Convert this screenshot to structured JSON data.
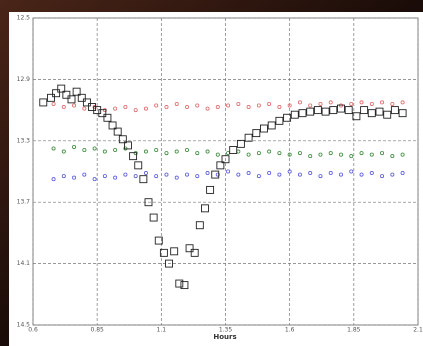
{
  "chart_data": {
    "type": "scatter",
    "xlabel": "Hours",
    "xlim": [
      0.6,
      2.1
    ],
    "xticks": [
      0.6,
      0.85,
      1.1,
      1.35,
      1.6,
      1.85,
      2.1
    ],
    "ylim": [
      12.5,
      14.5
    ],
    "yticks": [
      12.5,
      12.9,
      13.3,
      13.7,
      14.1,
      14.5
    ],
    "y_inverted": true,
    "grid": true,
    "series": [
      {
        "color": "#e06a6a",
        "marker": "circle",
        "x": [
          0.68,
          0.72,
          0.76,
          0.8,
          0.84,
          0.88,
          0.92,
          0.96,
          1.0,
          1.04,
          1.08,
          1.12,
          1.16,
          1.2,
          1.24,
          1.28,
          1.32,
          1.36,
          1.4,
          1.44,
          1.48,
          1.52,
          1.56,
          1.6,
          1.64,
          1.68,
          1.72,
          1.76,
          1.8,
          1.84,
          1.88,
          1.92,
          1.96,
          2.0,
          2.04
        ],
        "values": [
          13.06,
          13.08,
          13.07,
          13.09,
          13.08,
          13.1,
          13.09,
          13.08,
          13.1,
          13.09,
          13.07,
          13.08,
          13.06,
          13.08,
          13.07,
          13.09,
          13.08,
          13.07,
          13.06,
          13.08,
          13.07,
          13.06,
          13.08,
          13.07,
          13.05,
          13.07,
          13.06,
          13.05,
          13.07,
          13.06,
          13.05,
          13.06,
          13.05,
          13.06,
          13.05
        ]
      },
      {
        "color": "#3c8c3c",
        "marker": "circle",
        "x": [
          0.68,
          0.72,
          0.76,
          0.8,
          0.84,
          0.88,
          0.92,
          0.96,
          1.0,
          1.04,
          1.08,
          1.12,
          1.16,
          1.2,
          1.24,
          1.28,
          1.32,
          1.36,
          1.4,
          1.44,
          1.48,
          1.52,
          1.56,
          1.6,
          1.64,
          1.68,
          1.72,
          1.76,
          1.8,
          1.84,
          1.88,
          1.92,
          1.96,
          2.0,
          2.04
        ],
        "values": [
          13.35,
          13.37,
          13.34,
          13.36,
          13.35,
          13.37,
          13.36,
          13.35,
          13.38,
          13.37,
          13.36,
          13.38,
          13.37,
          13.36,
          13.38,
          13.37,
          13.39,
          13.38,
          13.37,
          13.39,
          13.38,
          13.37,
          13.38,
          13.39,
          13.38,
          13.4,
          13.39,
          13.38,
          13.39,
          13.4,
          13.38,
          13.39,
          13.38,
          13.4,
          13.39
        ]
      },
      {
        "color": "#5a5ae0",
        "marker": "circle",
        "x": [
          0.68,
          0.72,
          0.76,
          0.8,
          0.84,
          0.88,
          0.92,
          0.96,
          1.0,
          1.04,
          1.08,
          1.12,
          1.16,
          1.2,
          1.24,
          1.28,
          1.32,
          1.36,
          1.4,
          1.44,
          1.48,
          1.52,
          1.56,
          1.6,
          1.64,
          1.68,
          1.72,
          1.76,
          1.8,
          1.84,
          1.88,
          1.92,
          1.96,
          2.0,
          2.04
        ],
        "values": [
          13.55,
          13.53,
          13.54,
          13.52,
          13.55,
          13.53,
          13.54,
          13.52,
          13.53,
          13.51,
          13.53,
          13.52,
          13.54,
          13.52,
          13.53,
          13.51,
          13.52,
          13.5,
          13.52,
          13.51,
          13.53,
          13.51,
          13.52,
          13.5,
          13.52,
          13.51,
          13.53,
          13.51,
          13.52,
          13.5,
          13.52,
          13.51,
          13.53,
          13.52,
          13.51
        ]
      },
      {
        "color": "#222222",
        "marker": "square",
        "x": [
          0.64,
          0.67,
          0.69,
          0.71,
          0.73,
          0.75,
          0.77,
          0.79,
          0.81,
          0.83,
          0.85,
          0.87,
          0.89,
          0.91,
          0.93,
          0.95,
          0.97,
          0.99,
          1.01,
          1.03,
          1.05,
          1.07,
          1.09,
          1.11,
          1.13,
          1.15,
          1.17,
          1.19,
          1.21,
          1.23,
          1.25,
          1.27,
          1.29,
          1.31,
          1.33,
          1.35,
          1.38,
          1.41,
          1.44,
          1.47,
          1.5,
          1.53,
          1.56,
          1.59,
          1.62,
          1.65,
          1.68,
          1.71,
          1.74,
          1.77,
          1.8,
          1.83,
          1.86,
          1.89,
          1.92,
          1.95,
          1.98,
          2.01,
          2.04
        ],
        "values": [
          13.05,
          13.02,
          12.99,
          12.96,
          13.0,
          13.03,
          12.98,
          13.02,
          13.05,
          13.08,
          13.1,
          13.12,
          13.15,
          13.2,
          13.24,
          13.29,
          13.33,
          13.4,
          13.46,
          13.55,
          13.7,
          13.8,
          13.95,
          14.03,
          14.1,
          14.02,
          14.23,
          14.24,
          14.0,
          14.03,
          13.85,
          13.74,
          13.62,
          13.52,
          13.46,
          13.42,
          13.36,
          13.32,
          13.28,
          13.25,
          13.22,
          13.2,
          13.17,
          13.15,
          13.13,
          13.12,
          13.11,
          13.1,
          13.11,
          13.1,
          13.09,
          13.1,
          13.14,
          13.1,
          13.12,
          13.11,
          13.13,
          13.1,
          13.12
        ]
      }
    ]
  }
}
